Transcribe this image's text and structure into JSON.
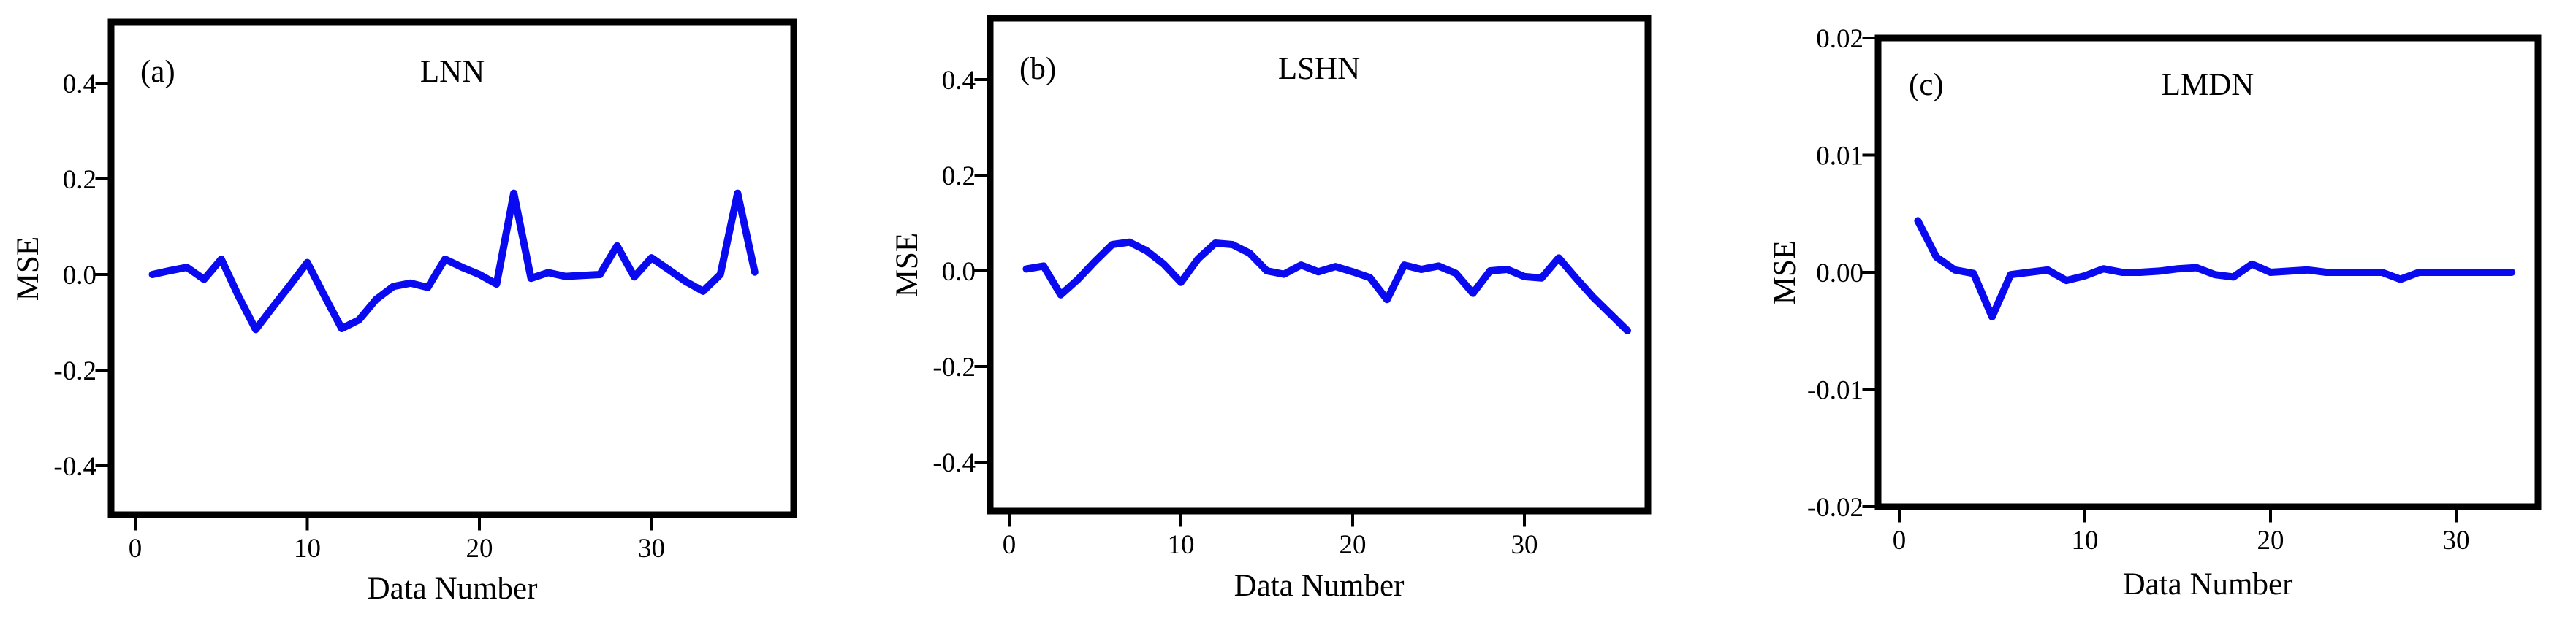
{
  "figure": {
    "background_color": "#ffffff",
    "line_color": "#0a0af0",
    "axis_color": "#000000",
    "xlabel": "Data Number",
    "ylabel": "MSE"
  },
  "chart_data": [
    {
      "type": "line",
      "panel_label": "(a)",
      "title": "LNN",
      "xlabel": "Data Number",
      "ylabel": "MSE",
      "legend": "none",
      "grid": false,
      "xlim": [
        -1.4,
        38.3
      ],
      "ylim": [
        -0.525,
        0.525
      ],
      "x_ticks": [
        0,
        10,
        20,
        30
      ],
      "x_tick_labels": [
        "0",
        "10",
        "20",
        "30"
      ],
      "y_ticks": [
        0.4,
        0.2,
        0.0,
        -0.2,
        -0.4
      ],
      "y_tick_labels": [
        "0.4",
        "0.2",
        "0.0",
        "-0.2",
        "-0.4"
      ],
      "x": [
        1,
        2,
        3,
        4,
        5,
        6,
        7,
        8,
        9,
        10,
        11,
        12,
        13,
        14,
        15,
        16,
        17,
        18,
        19,
        20,
        21,
        22,
        23,
        24,
        25,
        26,
        27,
        28,
        29,
        30,
        31,
        32,
        33,
        34,
        35,
        36
      ],
      "values": [
        0.0,
        0.008,
        0.015,
        -0.01,
        0.032,
        -0.045,
        -0.115,
        -0.068,
        -0.022,
        0.025,
        -0.045,
        -0.113,
        -0.095,
        -0.052,
        -0.025,
        -0.018,
        -0.027,
        0.032,
        0.015,
        0.0,
        -0.02,
        0.17,
        -0.008,
        0.004,
        -0.004,
        -0.002,
        0.0,
        0.06,
        -0.005,
        0.035,
        0.01,
        -0.015,
        -0.035,
        0.0,
        0.17,
        0.005
      ]
    },
    {
      "type": "line",
      "panel_label": "(b)",
      "title": "LSHN",
      "xlabel": "Data Number",
      "ylabel": "MSE",
      "legend": "none",
      "grid": false,
      "xlim": [
        -1.1,
        37.2
      ],
      "ylim": [
        -0.525,
        0.525
      ],
      "x_ticks": [
        0,
        10,
        20,
        30
      ],
      "x_tick_labels": [
        "0",
        "10",
        "20",
        "30"
      ],
      "y_ticks": [
        0.4,
        0.2,
        0.0,
        -0.2,
        -0.4
      ],
      "y_tick_labels": [
        "0.4",
        "0.2",
        "0.0",
        "-0.2",
        "-0.4"
      ],
      "x": [
        1,
        2,
        3,
        4,
        5,
        6,
        7,
        8,
        9,
        10,
        11,
        12,
        13,
        14,
        15,
        16,
        17,
        18,
        19,
        20,
        21,
        22,
        23,
        24,
        25,
        26,
        27,
        28,
        29,
        30,
        31,
        32,
        33,
        34,
        35,
        36
      ],
      "values": [
        0.004,
        0.01,
        -0.05,
        -0.018,
        0.02,
        0.055,
        0.06,
        0.042,
        0.014,
        -0.024,
        0.025,
        0.058,
        0.055,
        0.037,
        0.0,
        -0.007,
        0.012,
        -0.002,
        0.009,
        -0.002,
        -0.014,
        -0.06,
        0.012,
        0.003,
        0.01,
        -0.005,
        -0.047,
        0.0,
        0.003,
        -0.012,
        -0.015,
        0.027,
        -0.015,
        -0.055,
        -0.09,
        -0.125
      ]
    },
    {
      "type": "line",
      "panel_label": "(c)",
      "title": "LMDN",
      "xlabel": "Data Number",
      "ylabel": "MSE",
      "legend": "none",
      "grid": false,
      "xlim": [
        -1.1,
        34.4
      ],
      "ylim": [
        -0.02,
        0.02
      ],
      "x_ticks": [
        0,
        10,
        20,
        30
      ],
      "x_tick_labels": [
        "0",
        "10",
        "20",
        "30"
      ],
      "y_ticks": [
        0.02,
        0.01,
        0.0,
        -0.01,
        -0.02
      ],
      "y_tick_labels": [
        "0.02",
        "0.01",
        "0.00",
        "-0.01",
        "-0.02"
      ],
      "x": [
        1,
        2,
        3,
        4,
        5,
        6,
        7,
        8,
        9,
        10,
        11,
        12,
        13,
        14,
        15,
        16,
        17,
        18,
        19,
        20,
        21,
        22,
        23,
        24,
        25,
        26,
        27,
        28,
        29,
        30,
        31,
        32,
        33
      ],
      "values": [
        0.0044,
        0.0013,
        0.0002,
        -0.0001,
        -0.0038,
        -0.0002,
        0.0,
        0.0002,
        -0.0007,
        -0.0003,
        0.0003,
        0.0,
        0.0,
        0.0001,
        0.0003,
        0.0004,
        -0.0002,
        -0.0004,
        0.0007,
        0.0,
        0.0001,
        0.0002,
        0.0,
        0.0,
        0.0,
        0.0,
        -0.0006,
        0.0,
        0.0,
        0.0,
        0.0,
        0.0,
        0.0
      ]
    }
  ]
}
